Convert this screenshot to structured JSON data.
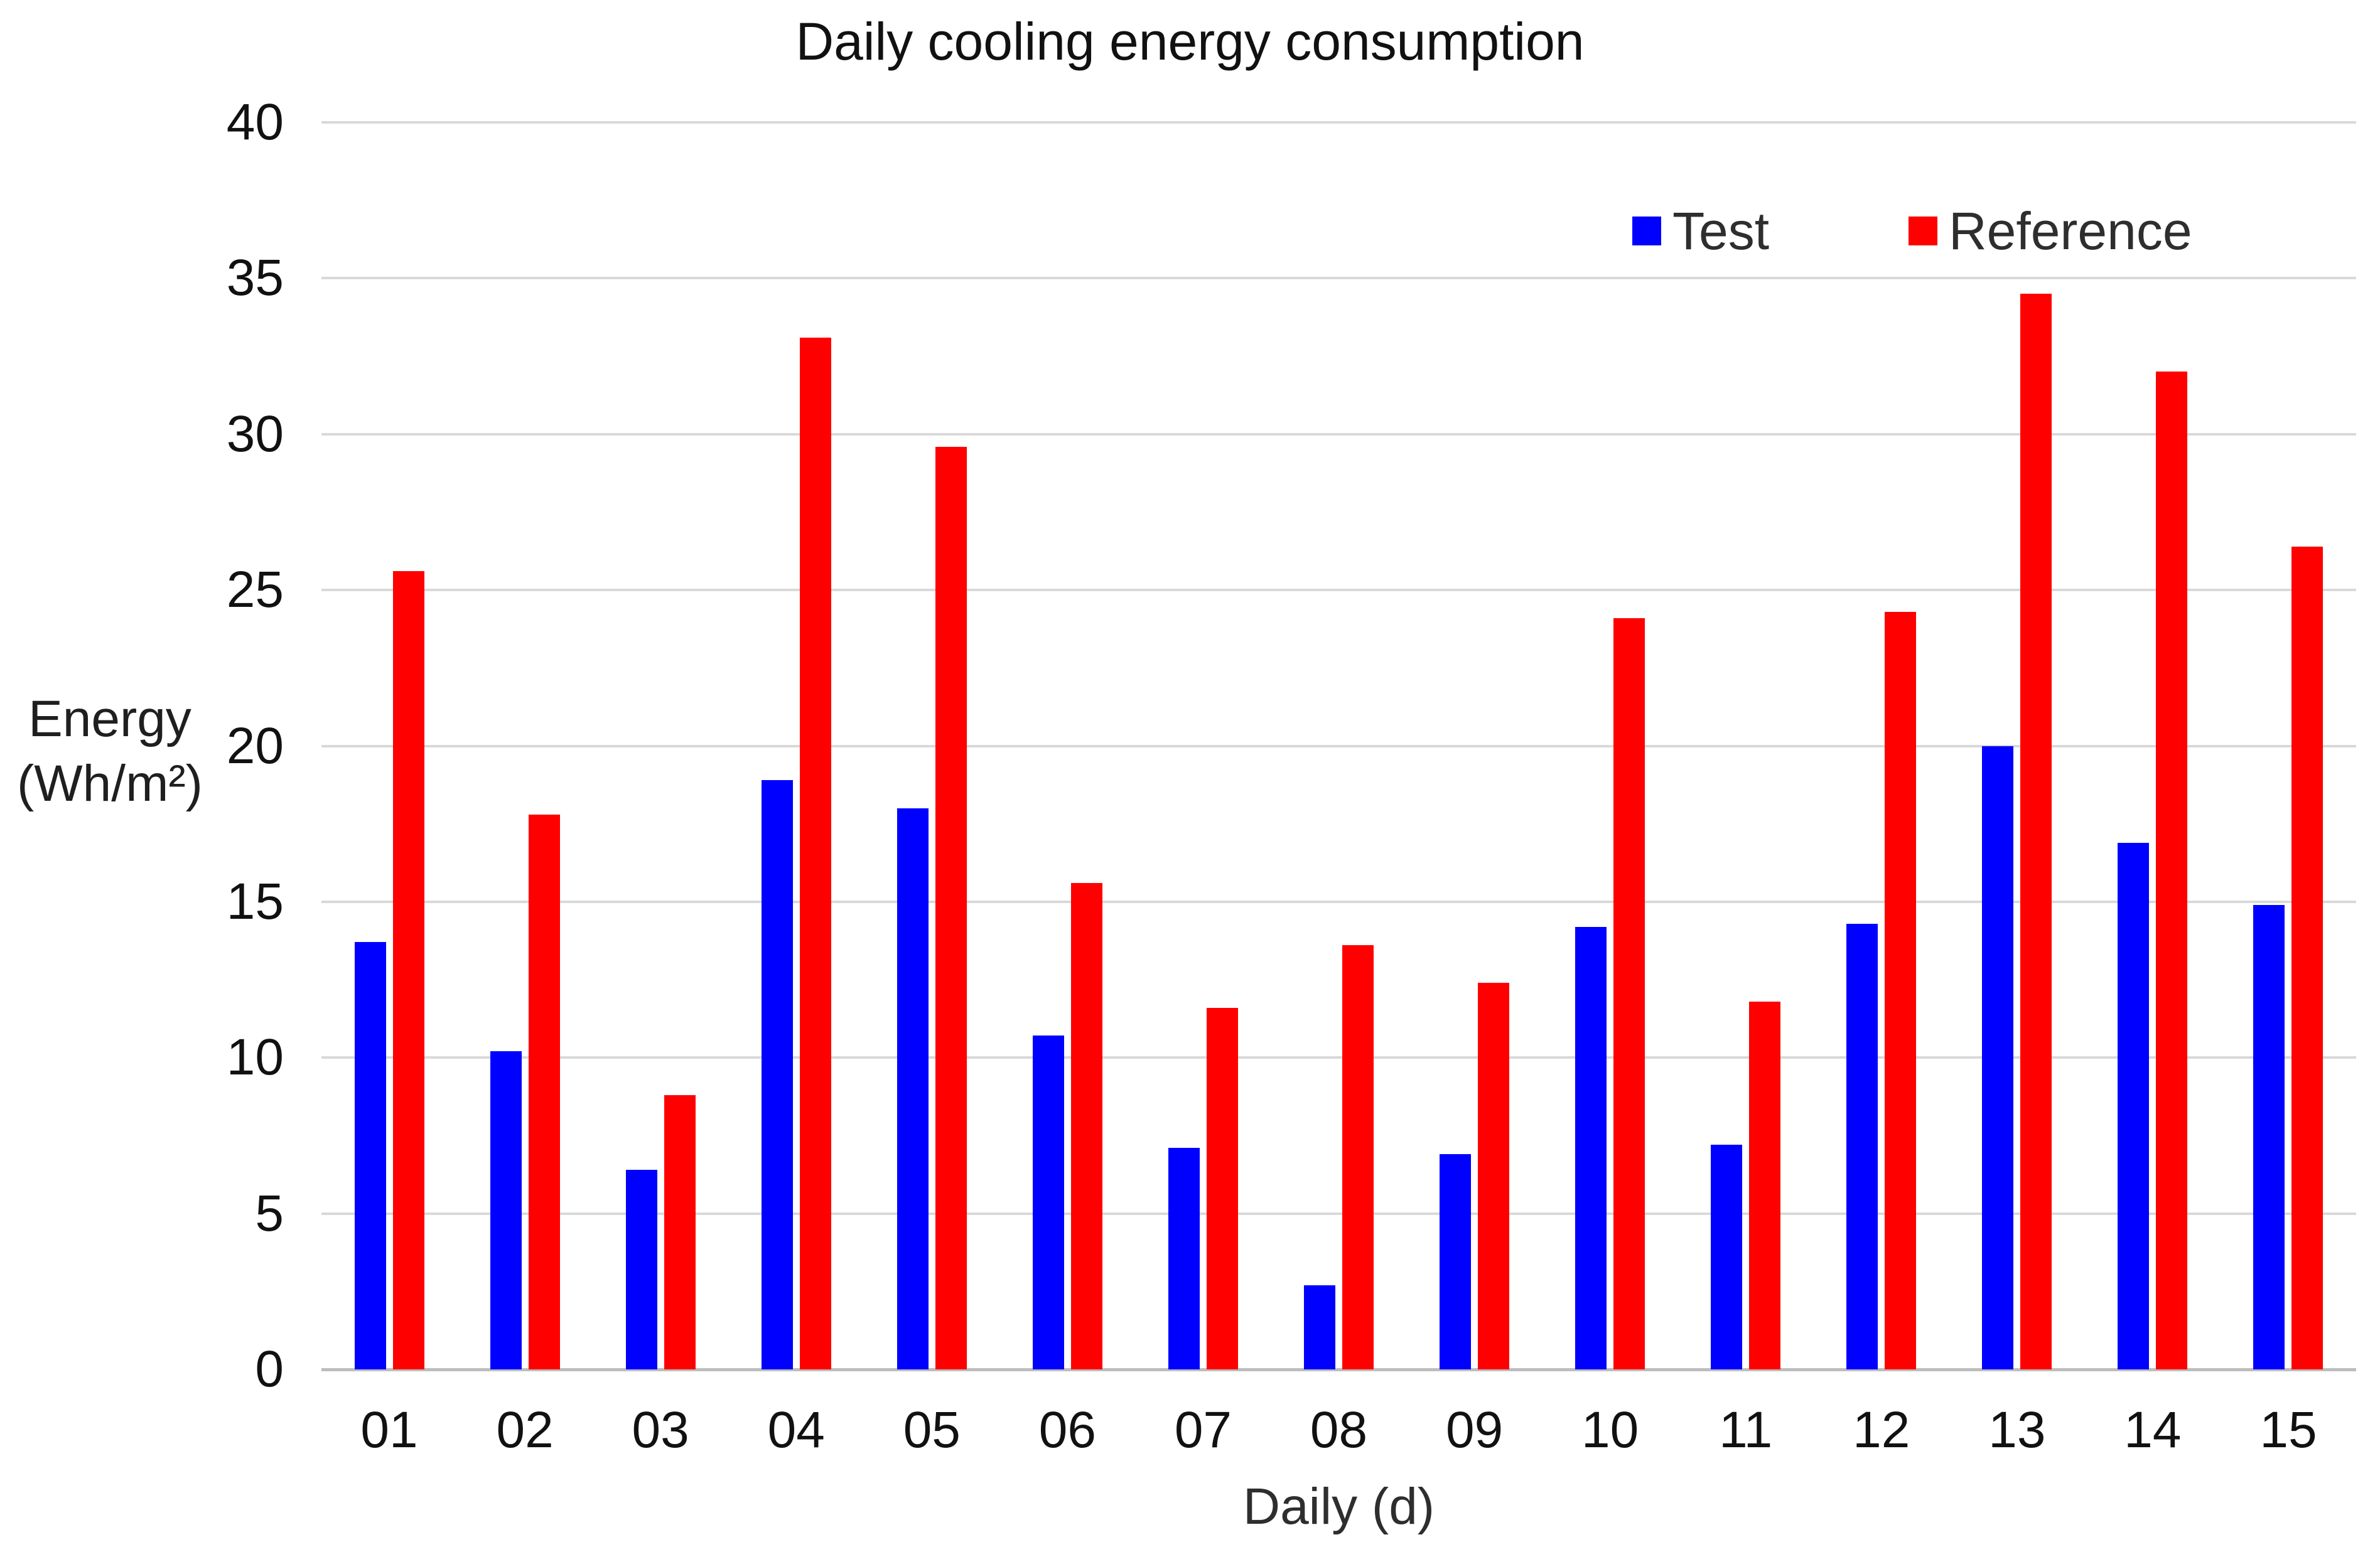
{
  "title": "Daily cooling energy consumption",
  "legend": [
    {
      "label": "Test",
      "color": "#0000ff"
    },
    {
      "label": "Reference",
      "color": "#ff0000"
    }
  ],
  "y_axis": {
    "title_line1": "Energy",
    "title_line2": "(Wh/m²)"
  },
  "x_axis": {
    "title": "Daily (d)"
  },
  "colors": {
    "test_bar": "#0000ff",
    "reference_bar": "#ff0000",
    "gridline": "#d9d9d9",
    "axis_line": "#bdbdbd"
  },
  "chart_data": {
    "type": "bar",
    "title": "Daily cooling energy consumption",
    "xlabel": "Daily (d)",
    "ylabel": "Energy (Wh/m²)",
    "categories": [
      "01",
      "02",
      "03",
      "04",
      "05",
      "06",
      "07",
      "08",
      "09",
      "10",
      "11",
      "12",
      "13",
      "14",
      "15"
    ],
    "series": [
      {
        "name": "Test",
        "color": "#0000ff",
        "values": [
          13.7,
          10.2,
          6.4,
          18.9,
          18.0,
          10.7,
          7.1,
          2.7,
          6.9,
          14.2,
          7.2,
          14.3,
          20.0,
          16.9,
          14.9
        ]
      },
      {
        "name": "Reference",
        "color": "#ff0000",
        "values": [
          25.6,
          17.8,
          8.8,
          33.1,
          29.6,
          15.6,
          11.6,
          13.6,
          12.4,
          24.1,
          11.8,
          24.3,
          34.5,
          32.0,
          26.4
        ]
      }
    ],
    "ylim": [
      0,
      40
    ],
    "yticks": [
      0,
      5,
      10,
      15,
      20,
      25,
      30,
      35,
      40
    ],
    "grid": true,
    "legend_position": "top-right-inside"
  }
}
